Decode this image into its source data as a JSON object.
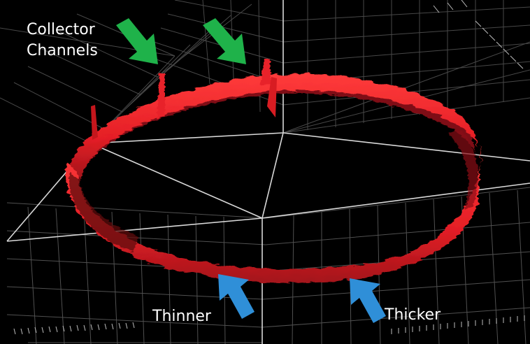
{
  "annotations": {
    "collector_line1": "Collector",
    "collector_line2": "Channels",
    "thinner": "Thinner",
    "thicker": "Thicker"
  },
  "colors": {
    "background": "#000000",
    "ring": "#e8232a",
    "ring_shadow": "#8e0f14",
    "grid": "#8a8a8a",
    "collector_arrows": "#1fb24a",
    "thickness_arrows": "#2f8fd8",
    "label_text": "#ffffff"
  },
  "icons": {
    "collector_arrow": "arrow-down-right-icon",
    "thinner_arrow": "arrow-up-left-icon",
    "thicker_arrow": "arrow-up-left-icon"
  }
}
